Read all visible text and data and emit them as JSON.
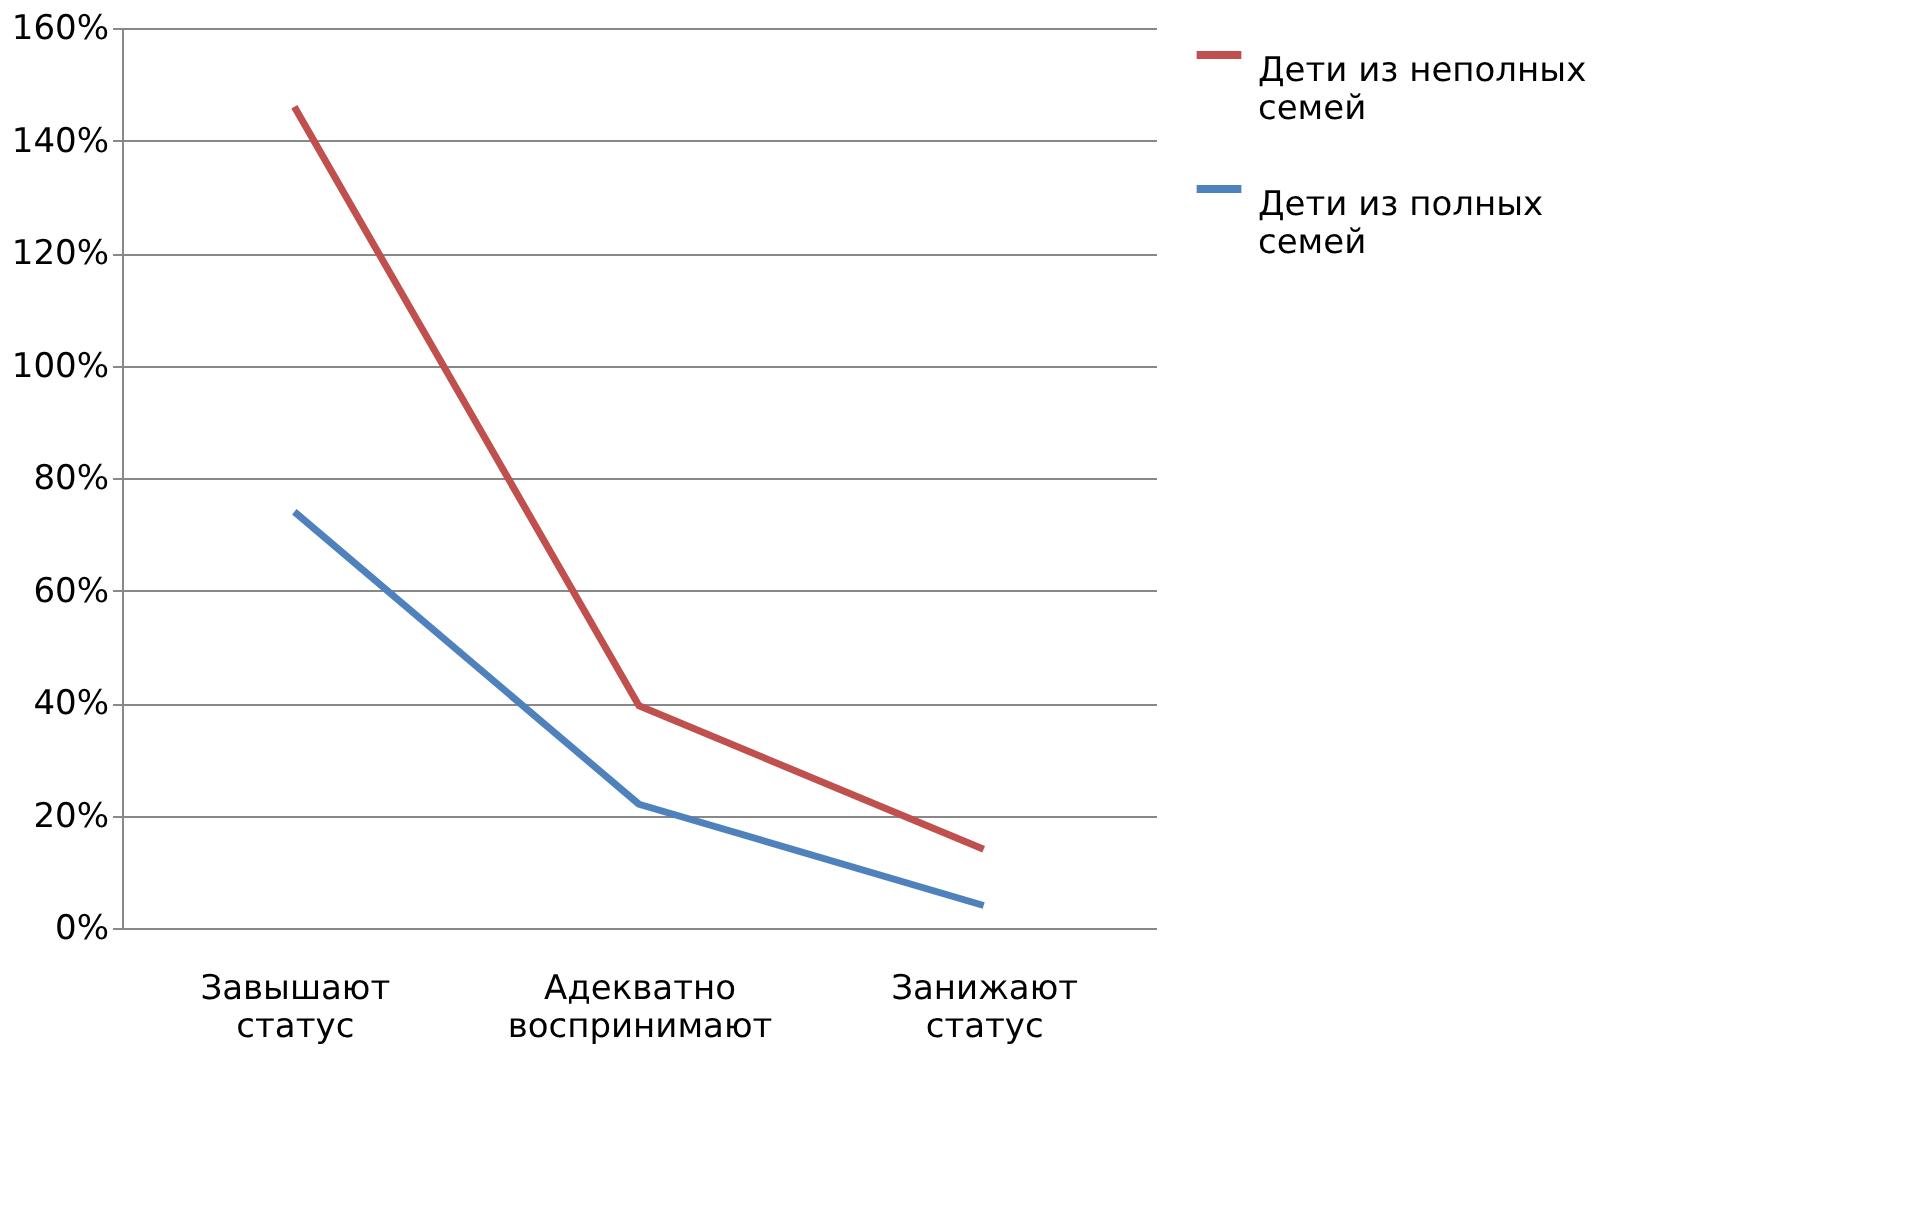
{
  "chart_data": {
    "type": "line",
    "categories": [
      "Завышают статус",
      "Адекватно воспринимают",
      "Занижают статус"
    ],
    "series": [
      {
        "name": "Дети из неполных семей",
        "color": "#c0504d",
        "values": [
          146,
          39.5,
          14
        ]
      },
      {
        "name": "Дети из полных семей",
        "color": "#4f81bd",
        "values": [
          74,
          22,
          4
        ]
      }
    ],
    "ylim": [
      0,
      160
    ],
    "yticks": [
      {
        "value": 0,
        "label": "0%"
      },
      {
        "value": 20,
        "label": "20%"
      },
      {
        "value": 40,
        "label": "40%"
      },
      {
        "value": 60,
        "label": "60%"
      },
      {
        "value": 80,
        "label": "80%"
      },
      {
        "value": 100,
        "label": "100%"
      },
      {
        "value": 120,
        "label": "120%"
      },
      {
        "value": 140,
        "label": "140%"
      },
      {
        "value": 160,
        "label": "160%"
      }
    ],
    "grid": "y",
    "legend": "right",
    "marker": "none",
    "line_style": "solid"
  }
}
